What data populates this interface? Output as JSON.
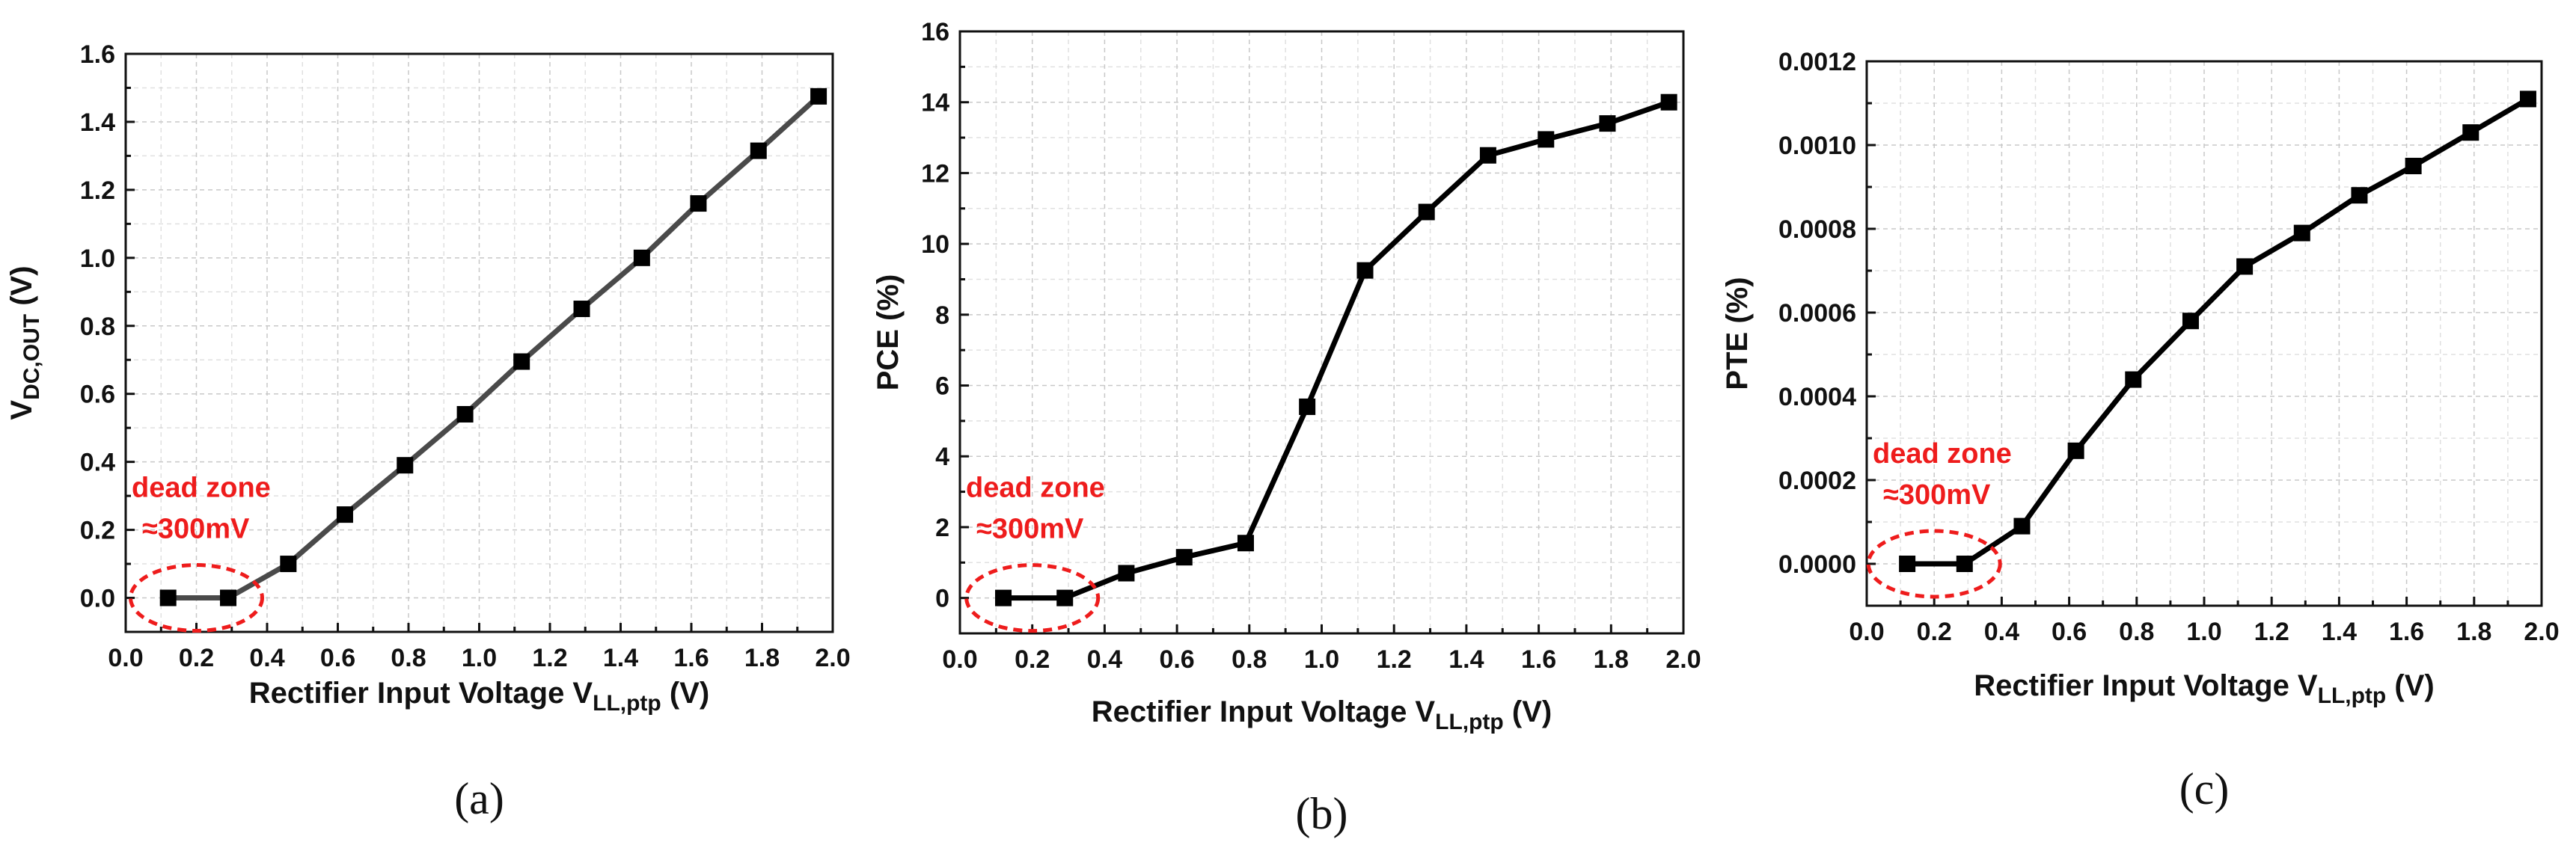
{
  "chart_data": [
    {
      "type": "line",
      "panel_label": "(a)",
      "ylabel": {
        "main": "V",
        "sub": "DC,OUT",
        "suffix": " (V)"
      },
      "xlabel": {
        "main": "Rectifier Input Voltage V",
        "sub": "LL,ptp",
        "suffix": " (V)"
      },
      "xlim": [
        0.0,
        2.0
      ],
      "ylim": [
        -0.1,
        1.6
      ],
      "xticks": [
        "0.0",
        "0.2",
        "0.4",
        "0.6",
        "0.8",
        "1.0",
        "1.2",
        "1.4",
        "1.6",
        "1.8",
        "2.0"
      ],
      "yticks": [
        "0.0",
        "0.2",
        "0.4",
        "0.6",
        "0.8",
        "1.0",
        "1.2",
        "1.4",
        "1.6"
      ],
      "line_color": "#4a4a4a",
      "series": [
        {
          "name": "VDC,OUT",
          "x": [
            0.12,
            0.29,
            0.46,
            0.62,
            0.79,
            0.96,
            1.12,
            1.29,
            1.46,
            1.62,
            1.79,
            1.96
          ],
          "y": [
            0.0,
            0.0,
            0.1,
            0.245,
            0.39,
            0.54,
            0.695,
            0.85,
            1.0,
            1.16,
            1.315,
            1.475
          ]
        }
      ],
      "annotation": {
        "line1": "dead zone",
        "line2": "≈300mV",
        "color": "#ee1c1c",
        "center_x": 0.2,
        "center_y": 0.0
      },
      "grid": true
    },
    {
      "type": "line",
      "panel_label": "(b)",
      "ylabel": {
        "main": "PCE (%)",
        "sub": "",
        "suffix": ""
      },
      "xlabel": {
        "main": "Rectifier Input Voltage V",
        "sub": "LL,ptp",
        "suffix": " (V)"
      },
      "xlim": [
        0.0,
        2.0
      ],
      "ylim": [
        -1,
        16
      ],
      "xticks": [
        "0.0",
        "0.2",
        "0.4",
        "0.6",
        "0.8",
        "1.0",
        "1.2",
        "1.4",
        "1.6",
        "1.8",
        "2.0"
      ],
      "yticks": [
        "0",
        "2",
        "4",
        "6",
        "8",
        "10",
        "12",
        "14",
        "16"
      ],
      "line_color": "#000000",
      "series": [
        {
          "name": "PCE",
          "x": [
            0.12,
            0.29,
            0.46,
            0.62,
            0.79,
            0.96,
            1.12,
            1.29,
            1.46,
            1.62,
            1.79,
            1.96
          ],
          "y": [
            0.0,
            0.0,
            0.7,
            1.15,
            1.55,
            5.4,
            9.25,
            10.9,
            12.5,
            12.95,
            13.4,
            14.0
          ]
        }
      ],
      "annotation": {
        "line1": "dead zone",
        "line2": "≈300mV",
        "color": "#ee1c1c",
        "center_x": 0.2,
        "center_y": 0.0
      },
      "grid": true
    },
    {
      "type": "line",
      "panel_label": "(c)",
      "ylabel": {
        "main": "PTE (%)",
        "sub": "",
        "suffix": ""
      },
      "xlabel": {
        "main": "Rectifier Input Voltage V",
        "sub": "LL,ptp",
        "suffix": " (V)"
      },
      "xlim": [
        0.0,
        2.0
      ],
      "ylim": [
        -0.0001,
        0.0012
      ],
      "xticks": [
        "0.0",
        "0.2",
        "0.4",
        "0.6",
        "0.8",
        "1.0",
        "1.2",
        "1.4",
        "1.6",
        "1.8",
        "2.0"
      ],
      "yticks": [
        "0.0000",
        "0.0002",
        "0.0004",
        "0.0006",
        "0.0008",
        "0.0010",
        "0.0012"
      ],
      "line_color": "#000000",
      "series": [
        {
          "name": "PTE",
          "x": [
            0.12,
            0.29,
            0.46,
            0.62,
            0.79,
            0.96,
            1.12,
            1.29,
            1.46,
            1.62,
            1.79,
            1.96
          ],
          "y": [
            0.0,
            0.0,
            9e-05,
            0.00027,
            0.00044,
            0.00058,
            0.00071,
            0.00079,
            0.00088,
            0.00095,
            0.00103,
            0.00111
          ]
        }
      ],
      "annotation": {
        "line1": "dead zone",
        "line2": "≈300mV",
        "color": "#ee1c1c",
        "center_x": 0.2,
        "center_y": 0.0
      },
      "grid": true
    }
  ]
}
